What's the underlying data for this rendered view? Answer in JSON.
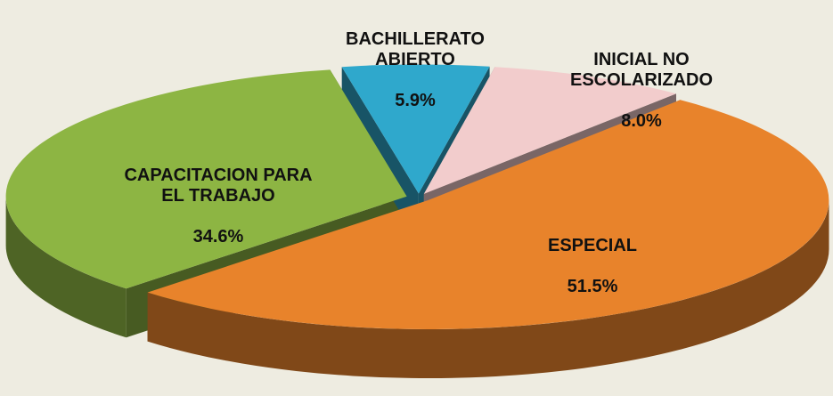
{
  "chart_data": {
    "type": "pie3d",
    "categories": [
      "ESPECIAL",
      "CAPACITACION  PARA\nEL TRABAJO",
      "BACHILLERATO\nABIERTO",
      "INICIAL NO\nESCOLARIZADO"
    ],
    "values": [
      51.5,
      34.6,
      5.9,
      8.0
    ],
    "value_labels": [
      "51.5%",
      "34.6%",
      "5.9%",
      "8.0%"
    ],
    "colors": [
      "#e8832b",
      "#8db543",
      "#2fa8cc",
      "#f2cccc"
    ]
  }
}
